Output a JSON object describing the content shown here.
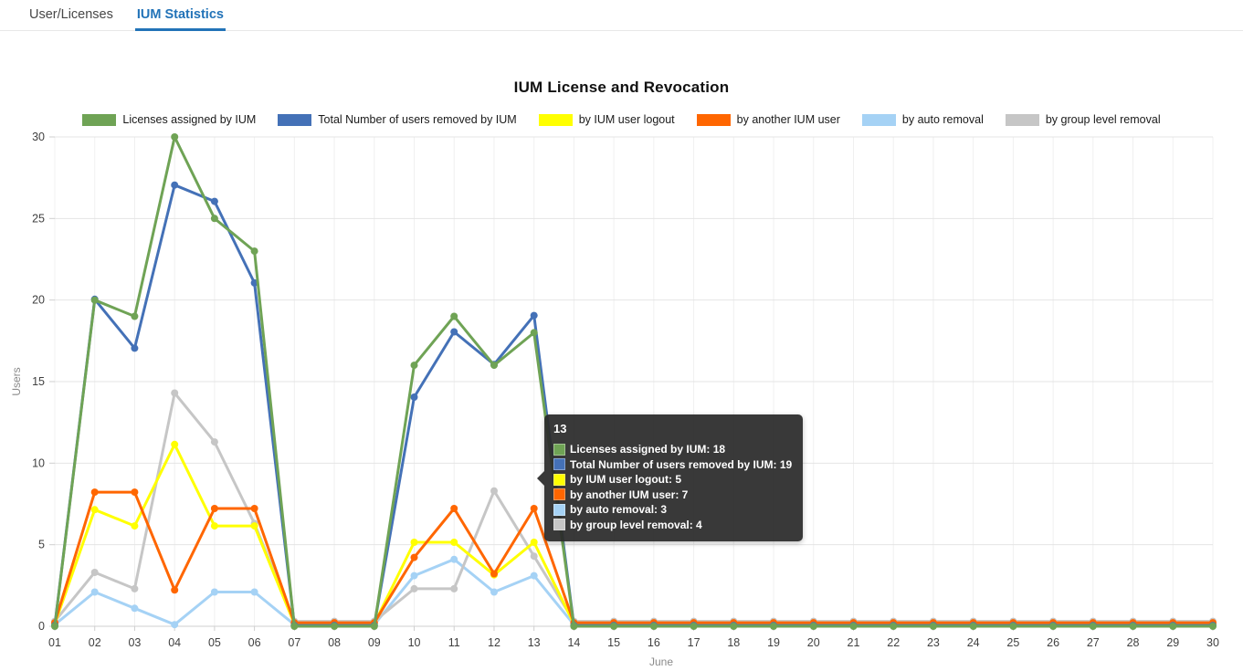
{
  "tabs": [
    {
      "label": "User/Licenses",
      "active": false
    },
    {
      "label": "IUM Statistics",
      "active": true
    }
  ],
  "colors": {
    "tab_active": "#2273B8",
    "grid_major": "#E4E4E4",
    "grid_minor": "#F0F0F0",
    "axis_line": "#CFCFCF",
    "tick_label": "#404040",
    "axis_title": "#8A8A8A",
    "tooltip_bg": "rgba(42,42,42,0.93)"
  },
  "chart_data": {
    "type": "line",
    "title": "IUM License and Revocation",
    "xlabel": "June",
    "ylabel": "Users",
    "ylim": [
      0,
      30
    ],
    "ytick_step": 5,
    "grid": true,
    "legend_position": "top",
    "categories": [
      "01",
      "02",
      "03",
      "04",
      "05",
      "06",
      "07",
      "08",
      "09",
      "10",
      "11",
      "12",
      "13",
      "14",
      "15",
      "16",
      "17",
      "18",
      "19",
      "20",
      "21",
      "22",
      "23",
      "24",
      "25",
      "26",
      "27",
      "28",
      "29",
      "30"
    ],
    "series": [
      {
        "name": "Licenses assigned by IUM",
        "color": "#6FA355",
        "render_offset": 0,
        "values": [
          0,
          20,
          19,
          30,
          25,
          23,
          0,
          0,
          0,
          16,
          19,
          16,
          18,
          0,
          0,
          0,
          0,
          0,
          0,
          0,
          0,
          0,
          0,
          0,
          0,
          0,
          0,
          0,
          0,
          0
        ]
      },
      {
        "name": "Total Number of users removed by IUM",
        "color": "#4471B7",
        "render_offset": 0.05,
        "values": [
          0,
          20,
          17,
          27,
          26,
          21,
          0,
          0,
          0,
          14,
          18,
          16,
          19,
          0,
          0,
          0,
          0,
          0,
          0,
          0,
          0,
          0,
          0,
          0,
          0,
          0,
          0,
          0,
          0,
          0
        ]
      },
      {
        "name": "by IUM user logout",
        "color": "#FFFF00",
        "render_offset": 0.15,
        "values": [
          0,
          7,
          6,
          11,
          6,
          6,
          0,
          0,
          0,
          5,
          5,
          3,
          5,
          0,
          0,
          0,
          0,
          0,
          0,
          0,
          0,
          0,
          0,
          0,
          0,
          0,
          0,
          0,
          0,
          0
        ]
      },
      {
        "name": "by another IUM user",
        "color": "#FF6600",
        "render_offset": 0.22,
        "values": [
          0,
          8,
          8,
          2,
          7,
          7,
          0,
          0,
          0,
          4,
          7,
          3,
          7,
          0,
          0,
          0,
          0,
          0,
          0,
          0,
          0,
          0,
          0,
          0,
          0,
          0,
          0,
          0,
          0,
          0
        ]
      },
      {
        "name": "by auto removal",
        "color": "#A5D2F5",
        "render_offset": 0.1,
        "values": [
          0,
          2,
          1,
          0,
          2,
          2,
          0,
          0,
          0,
          3,
          4,
          2,
          3,
          0,
          0,
          0,
          0,
          0,
          0,
          0,
          0,
          0,
          0,
          0,
          0,
          0,
          0,
          0,
          0,
          0
        ]
      },
      {
        "name": "by group level removal",
        "color": "#C6C6C6",
        "render_offset": 0.3,
        "values": [
          0,
          3,
          2,
          14,
          11,
          6,
          0,
          0,
          0,
          2,
          2,
          8,
          4,
          0,
          0,
          0,
          0,
          0,
          0,
          0,
          0,
          0,
          0,
          0,
          0,
          0,
          0,
          0,
          0,
          0
        ]
      }
    ]
  },
  "tooltip": {
    "title": "13",
    "items": [
      {
        "label": "Licenses assigned by IUM",
        "value": 18,
        "color": "#6FA355"
      },
      {
        "label": "Total Number of users removed by IUM",
        "value": 19,
        "color": "#4471B7"
      },
      {
        "label": "by IUM user logout",
        "value": 5,
        "color": "#FFFF00"
      },
      {
        "label": "by another IUM user",
        "value": 7,
        "color": "#FF6600"
      },
      {
        "label": "by auto removal",
        "value": 3,
        "color": "#A5D2F5"
      },
      {
        "label": "by group level removal",
        "value": 4,
        "color": "#C6C6C6"
      }
    ]
  }
}
